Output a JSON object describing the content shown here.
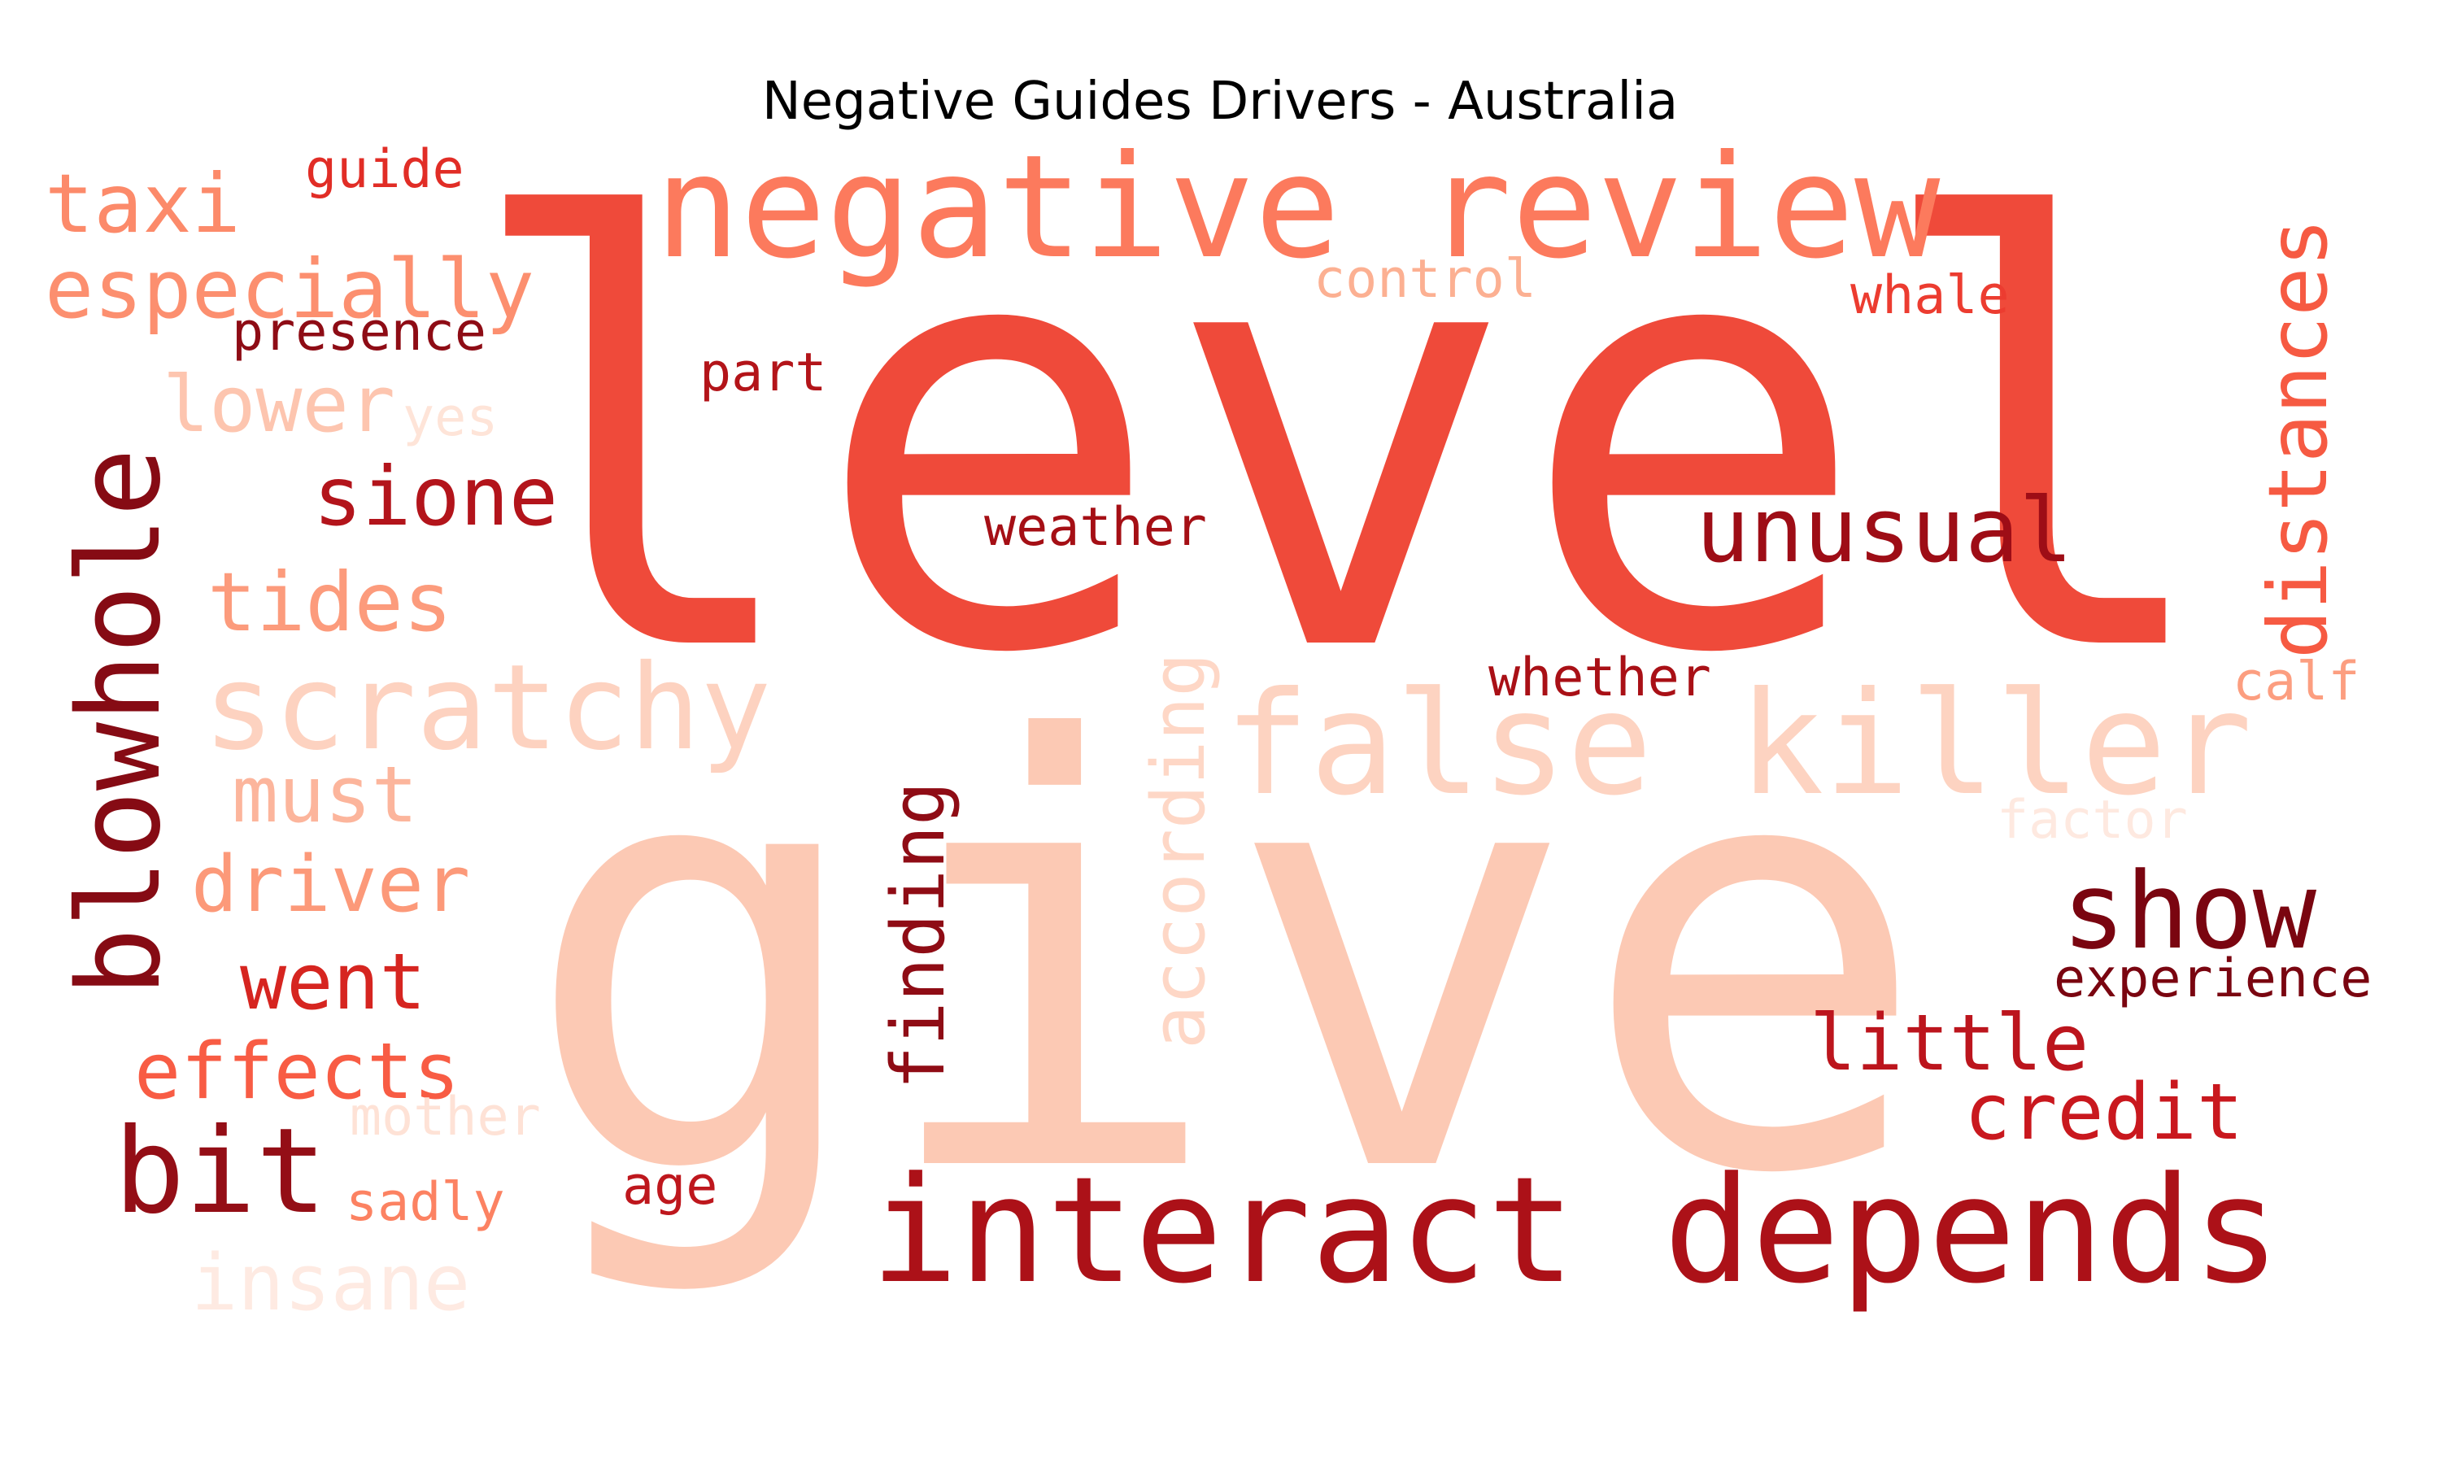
{
  "chart_data": {
    "type": "wordcloud",
    "title": "Negative Guides Drivers - Australia",
    "colormap": "Reds",
    "words": [
      {
        "text": "level",
        "color": "#ef4a3a"
      },
      {
        "text": "give",
        "color": "#fcc9b4"
      },
      {
        "text": "negative review",
        "color": "#fc7a5d"
      },
      {
        "text": "false killer",
        "color": "#fdd3c1"
      },
      {
        "text": "interact depends",
        "color": "#ac1118"
      },
      {
        "text": "blowhole",
        "color": "#860b14"
      },
      {
        "text": "distances",
        "color": "#f65a42"
      },
      {
        "text": "show",
        "color": "#7a0510"
      },
      {
        "text": "scratchy",
        "color": "#fdd2c0"
      },
      {
        "text": "unusual",
        "color": "#9e0d16"
      },
      {
        "text": "bit",
        "color": "#940e16"
      },
      {
        "text": "taxi",
        "color": "#fc8a6a"
      },
      {
        "text": "especially",
        "color": "#fc8f6f"
      },
      {
        "text": "sione",
        "color": "#b3141b"
      },
      {
        "text": "tides",
        "color": "#fc9b7c"
      },
      {
        "text": "lower",
        "color": "#fdc5af"
      },
      {
        "text": "finding",
        "color": "#8f0c15"
      },
      {
        "text": "according",
        "color": "#fed7c6"
      },
      {
        "text": "must",
        "color": "#fcb59c"
      },
      {
        "text": "driver",
        "color": "#fc9979"
      },
      {
        "text": "went",
        "color": "#d62520"
      },
      {
        "text": "effects",
        "color": "#f85c44"
      },
      {
        "text": "little",
        "color": "#bc151d"
      },
      {
        "text": "credit",
        "color": "#c9181e"
      },
      {
        "text": "experience",
        "color": "#7a0510"
      },
      {
        "text": "insane",
        "color": "#feeae2"
      },
      {
        "text": "guide",
        "color": "#e12d26"
      },
      {
        "text": "presence",
        "color": "#8e0c15"
      },
      {
        "text": "control",
        "color": "#fcb092"
      },
      {
        "text": "whale",
        "color": "#ec3c30"
      },
      {
        "text": "part",
        "color": "#b31419"
      },
      {
        "text": "weather",
        "color": "#a50f15"
      },
      {
        "text": "whether",
        "color": "#a91016"
      },
      {
        "text": "calf",
        "color": "#fc9e80"
      },
      {
        "text": "factor",
        "color": "#fee9e0"
      },
      {
        "text": "yes",
        "color": "#fee4d8"
      },
      {
        "text": "mother",
        "color": "#fee2d6"
      },
      {
        "text": "sadly",
        "color": "#fc8262"
      },
      {
        "text": "age",
        "color": "#be171d"
      }
    ]
  }
}
